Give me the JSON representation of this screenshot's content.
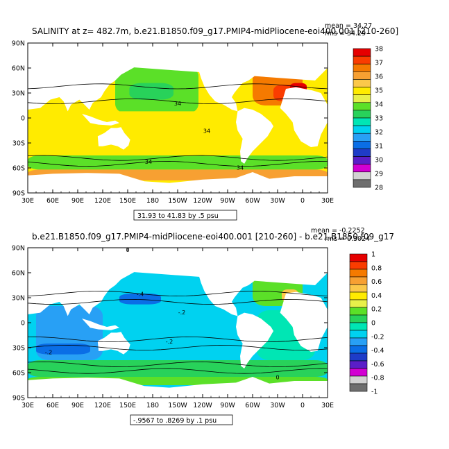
{
  "chart_data": [
    {
      "type": "heatmap",
      "title": "SALINITY at z= 482.7m, b.e21.B1850.f09_g17.PMIP4-midPliocene-eoi400.001  [210-260]",
      "stats": [
        "mean = 34.27",
        "rms = 34.29"
      ],
      "xticks": [
        "30E",
        "60E",
        "90E",
        "120E",
        "150E",
        "180",
        "150W",
        "120W",
        "90W",
        "60W",
        "30W",
        "0",
        "30E"
      ],
      "yticks": [
        "90N",
        "60N",
        "30N",
        "0",
        "30S",
        "60S",
        "90S"
      ],
      "xlim": [
        30,
        390
      ],
      "ylim": [
        -90,
        90
      ],
      "contour_labels": [
        "34",
        "34",
        "34",
        "34"
      ],
      "info_box": "31.93 to 41.83 by .5 psu",
      "colorbar_labels": [
        "38",
        "37",
        "36",
        "35",
        "34",
        "33",
        "32",
        "31",
        "30",
        "29",
        "28"
      ],
      "colorbar_colors": [
        "#e60000",
        "#fa3c00",
        "#f57a00",
        "#f7a032",
        "#fbc84a",
        "#ffeb00",
        "#e8f04a",
        "#5be028",
        "#28d25a",
        "#00e6b4",
        "#00d2f0",
        "#28a0f5",
        "#0a6ee6",
        "#1e3cc8",
        "#5a1ec8",
        "#d200d2",
        "#d2d2d2",
        "#6e6e6e"
      ],
      "regions": [
        {
          "name": "arctic",
          "lon": [
            45,
            375
          ],
          "lat": [
            80,
            88
          ],
          "color": "#f7a032"
        },
        {
          "name": "north-pacific",
          "lon": [
            135,
            235
          ],
          "lat": [
            5,
            62
          ],
          "color": "#5be028"
        },
        {
          "name": "north-pacific-core",
          "lon": [
            152,
            205
          ],
          "lat": [
            22,
            42
          ],
          "color": "#28d25a"
        },
        {
          "name": "tropical-indo-pacific",
          "lon": [
            40,
            290
          ],
          "lat": [
            -45,
            8
          ],
          "color": "#ffeb00"
        },
        {
          "name": "atlantic",
          "lon": [
            305,
            375
          ],
          "lat": [
            -45,
            10
          ],
          "color": "#ffeb00"
        },
        {
          "name": "north-atlantic",
          "lon": [
            300,
            360
          ],
          "lat": [
            15,
            65
          ],
          "color": "#f57a00"
        },
        {
          "name": "north-atlantic-core",
          "lon": [
            325,
            355
          ],
          "lat": [
            20,
            40
          ],
          "color": "#fa3c00"
        },
        {
          "name": "mediterranean",
          "lon": [
            345,
            365
          ],
          "lat": [
            30,
            42
          ],
          "color": "#e60000"
        },
        {
          "name": "southern-ocean",
          "lon": [
            30,
            390
          ],
          "lat": [
            -62,
            -45
          ],
          "color": "#5be028"
        },
        {
          "name": "antarctic",
          "lon": [
            30,
            390
          ],
          "lat": [
            -75,
            -62
          ],
          "color": "#f7a032"
        }
      ]
    },
    {
      "type": "heatmap",
      "title": "b.e21.B1850.f09_g17.PMIP4-midPliocene-eoi400.001  [210-260] - b.e21.B1850.f09_g17",
      "stats": [
        "mean = -0.2252",
        "rms = 0.3024"
      ],
      "xticks": [
        "30E",
        "60E",
        "90E",
        "120E",
        "150E",
        "180",
        "150W",
        "120W",
        "90W",
        "60W",
        "30W",
        "0",
        "30E"
      ],
      "yticks": [
        "90N",
        "60N",
        "30N",
        "0",
        "30S",
        "60S",
        "90S"
      ],
      "xlim": [
        30,
        390
      ],
      "ylim": [
        -90,
        90
      ],
      "contour_labels": [
        "0",
        "-.4",
        "-.2",
        "-.2",
        "-.2",
        "0"
      ],
      "info_box": "-.9567 to .8269 by .1 psu",
      "colorbar_labels": [
        "1",
        "0.8",
        "0.6",
        "0.4",
        "0.2",
        "0",
        "-0.2",
        "-0.4",
        "-0.6",
        "-0.8",
        "-1"
      ],
      "colorbar_colors": [
        "#e60000",
        "#fa3c00",
        "#f57a00",
        "#f7a032",
        "#fbc84a",
        "#ffeb00",
        "#e8f04a",
        "#5be028",
        "#28d25a",
        "#00e6b4",
        "#00d2f0",
        "#28a0f5",
        "#0a6ee6",
        "#1e3cc8",
        "#5a1ec8",
        "#d200d2",
        "#d2d2d2",
        "#6e6e6e"
      ],
      "regions": [
        {
          "name": "arctic",
          "lon": [
            45,
            375
          ],
          "lat": [
            82,
            88
          ],
          "color": "#5be028"
        },
        {
          "name": "pacific",
          "lon": [
            125,
            290
          ],
          "lat": [
            -45,
            60
          ],
          "color": "#00d2f0"
        },
        {
          "name": "north-pacific-core",
          "lon": [
            140,
            190
          ],
          "lat": [
            22,
            35
          ],
          "color": "#0a6ee6"
        },
        {
          "name": "indian",
          "lon": [
            40,
            120
          ],
          "lat": [
            -45,
            20
          ],
          "color": "#28a0f5"
        },
        {
          "name": "indian-core",
          "lon": [
            40,
            105
          ],
          "lat": [
            -38,
            -25
          ],
          "color": "#0a6ee6"
        },
        {
          "name": "atlantic",
          "lon": [
            305,
            375
          ],
          "lat": [
            -45,
            15
          ],
          "color": "#00e6b4"
        },
        {
          "name": "north-atlantic",
          "lon": [
            300,
            360
          ],
          "lat": [
            20,
            62
          ],
          "color": "#5be028"
        },
        {
          "name": "north-atlantic-core",
          "lon": [
            335,
            355
          ],
          "lat": [
            25,
            40
          ],
          "color": "#fbc84a"
        },
        {
          "name": "southern-ocean",
          "lon": [
            30,
            390
          ],
          "lat": [
            -65,
            -45
          ],
          "color": "#28d25a"
        },
        {
          "name": "antarctic",
          "lon": [
            30,
            390
          ],
          "lat": [
            -75,
            -65
          ],
          "color": "#5be028"
        }
      ]
    }
  ]
}
